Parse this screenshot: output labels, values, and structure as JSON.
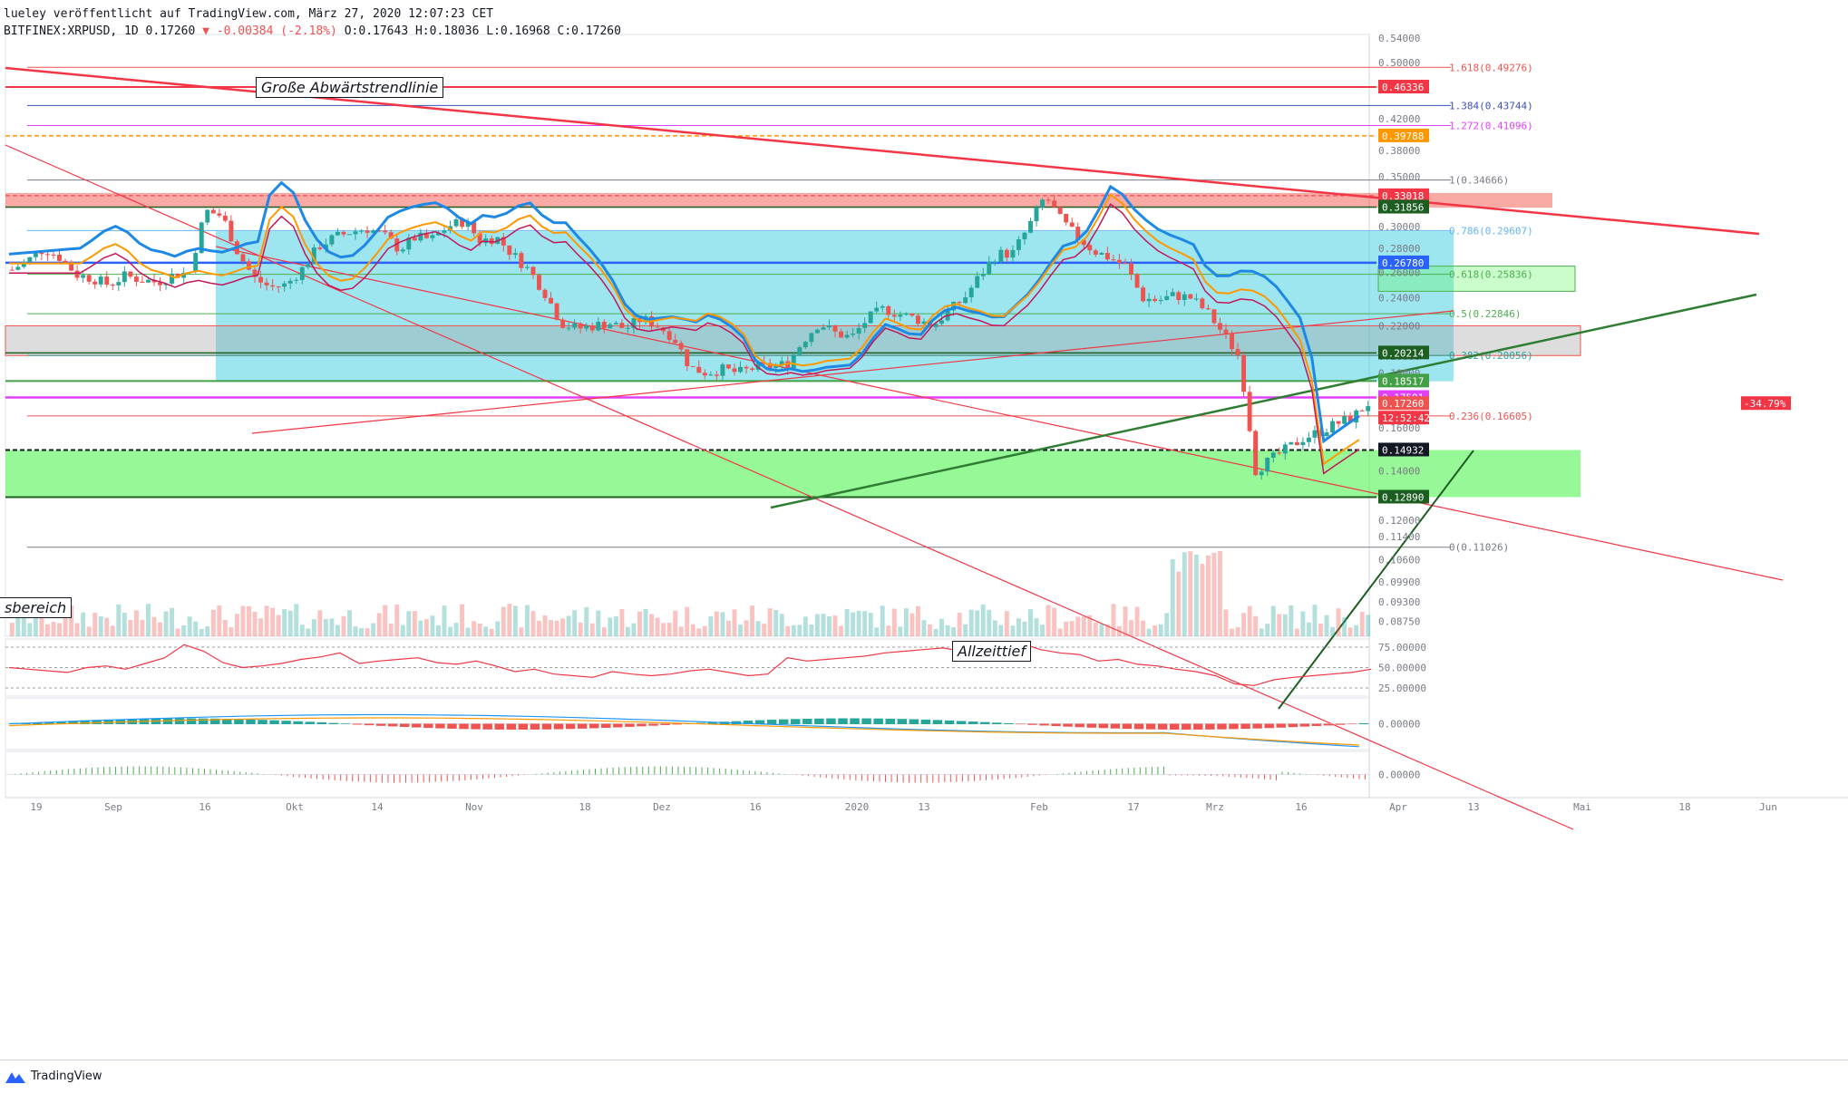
{
  "header": {
    "line1": "lueley veröffentlicht auf TradingView.com, März 27, 2020 12:07:23 CET",
    "symbol": "BITFINEX:XRPUSD, 1D",
    "last": "0.17260",
    "change": "-0.00384 (-2.18%)",
    "ohlc": "O:0.17643 H:0.18036 L:0.16968 C:0.17260"
  },
  "brand": {
    "name": "TradingView"
  },
  "annotations": {
    "trendline": "Große Abwärtstrendlinie",
    "zone": "sbereich",
    "ath_low": "Allzeittief"
  },
  "colors": {
    "up": "#26a69a",
    "down": "#ef5350",
    "cyan_zone": "#4dd0e1",
    "green_zone": "#69f569",
    "red_zone": "#f44336",
    "grey_zone": "#9e9e9e",
    "blue_ma": "#1e88e5",
    "orange_ma": "#ff9800"
  },
  "chart_data": [
    {
      "type": "candlestick",
      "title": "BITFINEX:XRPUSD, 1D",
      "ylim": [
        0.0835,
        0.546
      ],
      "y_scale": "log",
      "y_ticks": [
        "0.54000",
        "0.50000",
        "0.46000",
        "0.42000",
        "0.38000",
        "0.35000",
        "0.32000",
        "0.30000",
        "0.28000",
        "0.26000",
        "0.24000",
        "0.22000",
        "0.20000",
        "0.19000",
        "0.16000",
        "0.14000",
        "0.12000",
        "0.11400",
        "0.10600",
        "0.09900",
        "0.09300",
        "0.08750"
      ],
      "x_ticks": [
        "19",
        "Sep",
        "16",
        "Okt",
        "14",
        "Nov",
        "18",
        "Dez",
        "16",
        "2020",
        "13",
        "Feb",
        "17",
        "Mrz",
        "16",
        "Apr",
        "13",
        "Mai",
        "18",
        "Jun"
      ],
      "close_path": [
        [
          0,
          0.262
        ],
        [
          1,
          0.27
        ],
        [
          2,
          0.28
        ],
        [
          3,
          0.272
        ],
        [
          4,
          0.258
        ],
        [
          5,
          0.255
        ],
        [
          6,
          0.25
        ],
        [
          7,
          0.257
        ],
        [
          8,
          0.254
        ],
        [
          9,
          0.252
        ],
        [
          10,
          0.258
        ],
        [
          11,
          0.26
        ],
        [
          12,
          0.315
        ],
        [
          13,
          0.31
        ],
        [
          14,
          0.276
        ],
        [
          15,
          0.255
        ],
        [
          16,
          0.248
        ],
        [
          17,
          0.25
        ],
        [
          18,
          0.263
        ],
        [
          19,
          0.282
        ],
        [
          20,
          0.29
        ],
        [
          21,
          0.295
        ],
        [
          22,
          0.298
        ],
        [
          23,
          0.292
        ],
        [
          24,
          0.279
        ],
        [
          25,
          0.29
        ],
        [
          26,
          0.288
        ],
        [
          27,
          0.3
        ],
        [
          28,
          0.305
        ],
        [
          29,
          0.287
        ],
        [
          30,
          0.29
        ],
        [
          31,
          0.275
        ],
        [
          32,
          0.262
        ],
        [
          33,
          0.244
        ],
        [
          34,
          0.222
        ],
        [
          35,
          0.218
        ],
        [
          36,
          0.22
        ],
        [
          37,
          0.222
        ],
        [
          38,
          0.218
        ],
        [
          39,
          0.225
        ],
        [
          40,
          0.22
        ],
        [
          41,
          0.212
        ],
        [
          42,
          0.193
        ],
        [
          43,
          0.19
        ],
        [
          44,
          0.192
        ],
        [
          45,
          0.19
        ],
        [
          46,
          0.193
        ],
        [
          47,
          0.194
        ],
        [
          48,
          0.195
        ],
        [
          49,
          0.21
        ],
        [
          50,
          0.222
        ],
        [
          51,
          0.215
        ],
        [
          52,
          0.212
        ],
        [
          53,
          0.225
        ],
        [
          54,
          0.232
        ],
        [
          55,
          0.228
        ],
        [
          56,
          0.225
        ],
        [
          57,
          0.22
        ],
        [
          58,
          0.23
        ],
        [
          59,
          0.24
        ],
        [
          60,
          0.258
        ],
        [
          61,
          0.275
        ],
        [
          62,
          0.276
        ],
        [
          63,
          0.3
        ],
        [
          64,
          0.33
        ],
        [
          65,
          0.305
        ],
        [
          66,
          0.29
        ],
        [
          67,
          0.278
        ],
        [
          68,
          0.272
        ],
        [
          69,
          0.265
        ],
        [
          70,
          0.24
        ],
        [
          71,
          0.238
        ],
        [
          72,
          0.242
        ],
        [
          73,
          0.24
        ],
        [
          74,
          0.23
        ],
        [
          75,
          0.215
        ],
        [
          76,
          0.2
        ],
        [
          77,
          0.14
        ],
        [
          78,
          0.145
        ],
        [
          79,
          0.15
        ],
        [
          80,
          0.155
        ],
        [
          81,
          0.158
        ],
        [
          82,
          0.162
        ],
        [
          83,
          0.165
        ],
        [
          84,
          0.1726
        ]
      ],
      "horizontal_levels": [
        {
          "label": "1.618(0.49276)",
          "value": 0.49276,
          "color": "#ef5350"
        },
        {
          "label": "1.384(0.43744)",
          "value": 0.43744,
          "color": "#3f51b5"
        },
        {
          "label": "1.272(0.41096)",
          "value": 0.41096,
          "color": "#e040fb"
        },
        {
          "label": "1(0.34666)",
          "value": 0.34666,
          "color": "#787b86"
        },
        {
          "label": "0.786(0.29607)",
          "value": 0.29607,
          "color": "#64b5f6"
        },
        {
          "label": "0.618(0.25836)",
          "value": 0.25836,
          "color": "#4caf50"
        },
        {
          "label": "0.5(0.22846)",
          "value": 0.22846,
          "color": "#4caf50"
        },
        {
          "label": "0.382(0.20056)",
          "value": 0.20056,
          "color": "#26a69a"
        },
        {
          "label": "0.236(0.16605)",
          "value": 0.16605,
          "color": "#ef5350"
        },
        {
          "label": "0(0.11026)",
          "value": 0.11026,
          "color": "#787b86"
        }
      ],
      "price_tags": [
        {
          "text": "0.46336",
          "value": 0.46336,
          "bg": "#f23645"
        },
        {
          "text": "0.39788",
          "value": 0.39788,
          "bg": "#ff9800"
        },
        {
          "text": "0.33018",
          "value": 0.33018,
          "bg": "#f23645"
        },
        {
          "text": "0.31856",
          "value": 0.31856,
          "bg": "#1b5e20"
        },
        {
          "text": "0.26780",
          "value": 0.2678,
          "bg": "#2962ff"
        },
        {
          "text": "0.20214",
          "value": 0.20214,
          "bg": "#1b5e20"
        },
        {
          "text": "0.18517",
          "value": 0.18517,
          "bg": "#43a047"
        },
        {
          "text": "0.17591",
          "value": 0.17591,
          "bg": "#e040fb"
        },
        {
          "text": "0.17260",
          "value": 0.1726,
          "bg": "#ef5350"
        },
        {
          "text": "0.14932",
          "value": 0.14932,
          "bg": "#131722"
        },
        {
          "text": "0.12890",
          "value": 0.1289,
          "bg": "#1b5e20"
        }
      ],
      "extra_labels": {
        "countdown": "12:52:42",
        "pct_change": "-34.79%"
      }
    },
    {
      "type": "line",
      "title": "RSI",
      "ylim": [
        15,
        85
      ],
      "y_ticks": [
        "75.00000",
        "50.00000",
        "25.00000"
      ],
      "values": [
        50,
        48,
        46,
        44,
        50,
        52,
        48,
        55,
        62,
        78,
        70,
        56,
        50,
        52,
        55,
        60,
        63,
        68,
        55,
        58,
        60,
        62,
        56,
        54,
        58,
        52,
        45,
        48,
        42,
        40,
        38,
        45,
        42,
        40,
        42,
        46,
        48,
        44,
        40,
        42,
        62,
        58,
        60,
        62,
        64,
        68,
        70,
        72,
        74,
        70,
        66,
        74,
        80,
        72,
        68,
        66,
        58,
        60,
        54,
        52,
        48,
        45,
        40,
        30,
        28,
        35,
        38,
        40,
        42,
        44,
        48
      ]
    },
    {
      "type": "line",
      "title": "MACD",
      "y_ticks": [
        "0.00000"
      ]
    },
    {
      "type": "line",
      "title": "Oscillator",
      "y_ticks": [
        "0.00000"
      ]
    }
  ]
}
